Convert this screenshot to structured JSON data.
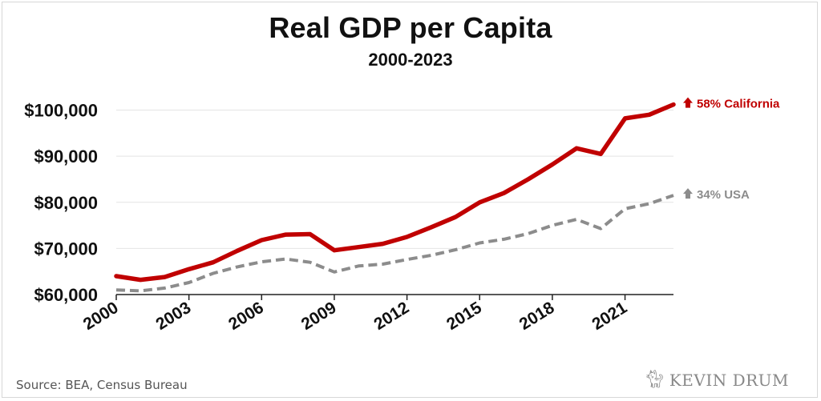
{
  "chart_data": {
    "type": "line",
    "title": "Real GDP per Capita",
    "subtitle": "2000-2023",
    "x": [
      2000,
      2001,
      2002,
      2003,
      2004,
      2005,
      2006,
      2007,
      2008,
      2009,
      2010,
      2011,
      2012,
      2013,
      2014,
      2015,
      2016,
      2017,
      2018,
      2019,
      2020,
      2021,
      2022,
      2023
    ],
    "xticks": [
      {
        "value": 2000,
        "label": "2000"
      },
      {
        "value": 2003,
        "label": "2003"
      },
      {
        "value": 2006,
        "label": "2006"
      },
      {
        "value": 2009,
        "label": "2009"
      },
      {
        "value": 2012,
        "label": "2012"
      },
      {
        "value": 2015,
        "label": "2015"
      },
      {
        "value": 2018,
        "label": "2018"
      },
      {
        "value": 2021,
        "label": "2021"
      }
    ],
    "yticks": [
      {
        "value": 60000,
        "label": "$60,000"
      },
      {
        "value": 70000,
        "label": "$70,000"
      },
      {
        "value": 80000,
        "label": "$80,000"
      },
      {
        "value": 90000,
        "label": "$90,000"
      },
      {
        "value": 100000,
        "label": "$100,000"
      }
    ],
    "xlim": [
      2000,
      2023
    ],
    "ylim": [
      60000,
      102000
    ],
    "grid": true,
    "series": [
      {
        "name": "California",
        "label": "58% California",
        "color": "#c00000",
        "style": "solid",
        "values": [
          64000,
          63200,
          63800,
          65500,
          67000,
          69500,
          71800,
          73000,
          73100,
          69600,
          70300,
          71000,
          72500,
          74600,
          76800,
          80000,
          82000,
          85000,
          88200,
          91700,
          90500,
          98200,
          99000,
          101200
        ]
      },
      {
        "name": "USA",
        "label": "34% USA",
        "color": "#8c8c8c",
        "style": "dashed",
        "values": [
          61000,
          60800,
          61400,
          62600,
          64600,
          66000,
          67100,
          67700,
          67000,
          64900,
          66200,
          66600,
          67600,
          68500,
          69700,
          71200,
          72000,
          73200,
          75000,
          76300,
          74300,
          78600,
          79700,
          81500
        ]
      }
    ]
  },
  "source": "Source: BEA, Census Bureau",
  "logo": {
    "text": "KEVIN DRUM",
    "icon": "cat-icon"
  }
}
